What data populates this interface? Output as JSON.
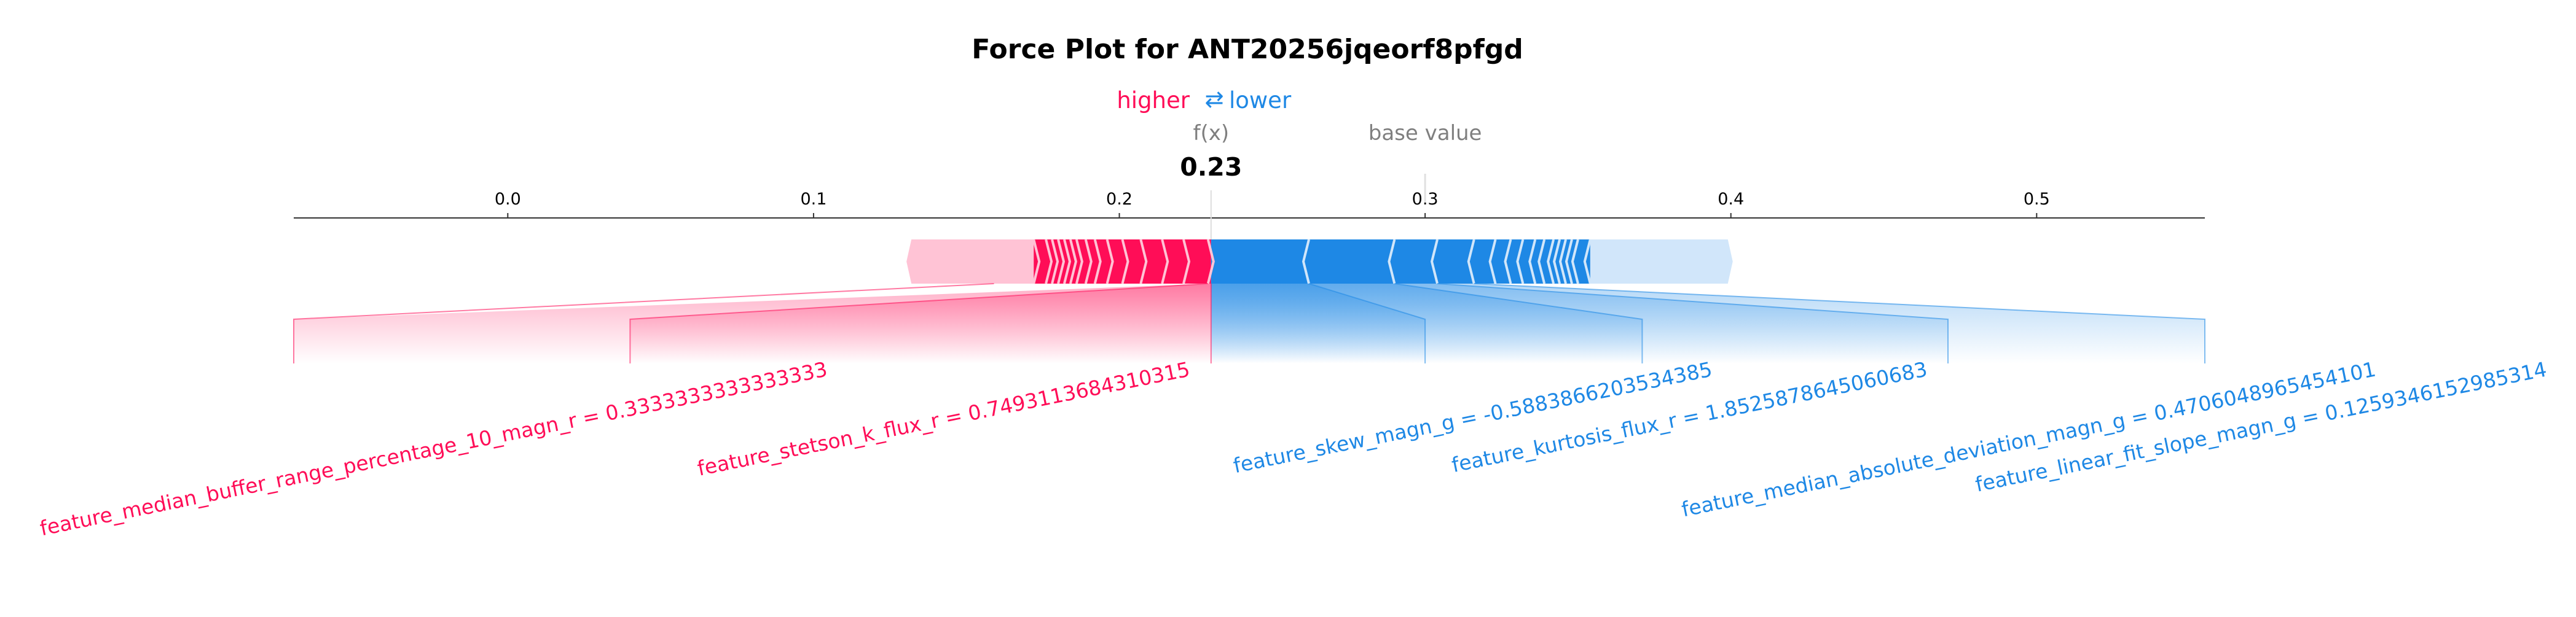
{
  "chart_data": {
    "type": "force",
    "title": "Force Plot for ANT20256jqeorf8pfgd",
    "legend": {
      "higher": "higher",
      "arrows": "⇄",
      "lower": "lower"
    },
    "output_label": "f(x)",
    "output_value": 0.23,
    "output_value_text": "0.23",
    "base_value_label": "base value",
    "base_value": 0.3,
    "xlim": [
      -0.07,
      0.555
    ],
    "ticks": [
      {
        "value": 0.0,
        "label": "0.0"
      },
      {
        "value": 0.1,
        "label": "0.1"
      },
      {
        "value": 0.2,
        "label": "0.2"
      },
      {
        "value": 0.3,
        "label": "0.3"
      },
      {
        "value": 0.4,
        "label": "0.4"
      },
      {
        "value": 0.5,
        "label": "0.5"
      }
    ],
    "positive_segments": [
      0.229,
      0.221,
      0.214,
      0.207,
      0.201,
      0.196,
      0.192,
      0.189,
      0.186,
      0.184,
      0.182,
      0.18,
      0.178,
      0.176,
      0.172
    ],
    "negative_segments": [
      0.262,
      0.29,
      0.304,
      0.316,
      0.323,
      0.328,
      0.332,
      0.336,
      0.339,
      0.342,
      0.344,
      0.346,
      0.348,
      0.35,
      0.354
    ],
    "positive_labeled": [
      {
        "label": "feature_median_buffer_range_percentage_10_magn_r = 0.3333333333333333",
        "value": 0.068,
        "from": 0.161,
        "to": 0.229
      },
      {
        "label": "feature_stetson_k_flux_r = 0.7493113684310315",
        "value": 0.069,
        "from": 0.229,
        "to": 0.298
      }
    ],
    "negative_labeled": [
      {
        "label": "feature_skew_magn_g = -0.5883866203534385",
        "value": 0.032,
        "from": 0.23,
        "to": 0.262
      },
      {
        "label": "feature_kurtosis_flux_r = 1.8525878645060683",
        "value": 0.028,
        "from": 0.262,
        "to": 0.29
      },
      {
        "label": "feature_median_absolute_deviation_magn_g = 0.4706048965454101",
        "value": 0.014,
        "from": 0.29,
        "to": 0.304
      },
      {
        "label": "feature_linear_fit_slope_magn_g = 0.1259346152985314",
        "value": 0.012,
        "from": 0.304,
        "to": 0.316
      }
    ],
    "colors": {
      "positive": "#ff0d57",
      "negative": "#1e88e5",
      "positive_light": "#ffc3d5",
      "negative_light": "#d1e6fa",
      "grey": "#7f7f7f"
    }
  }
}
